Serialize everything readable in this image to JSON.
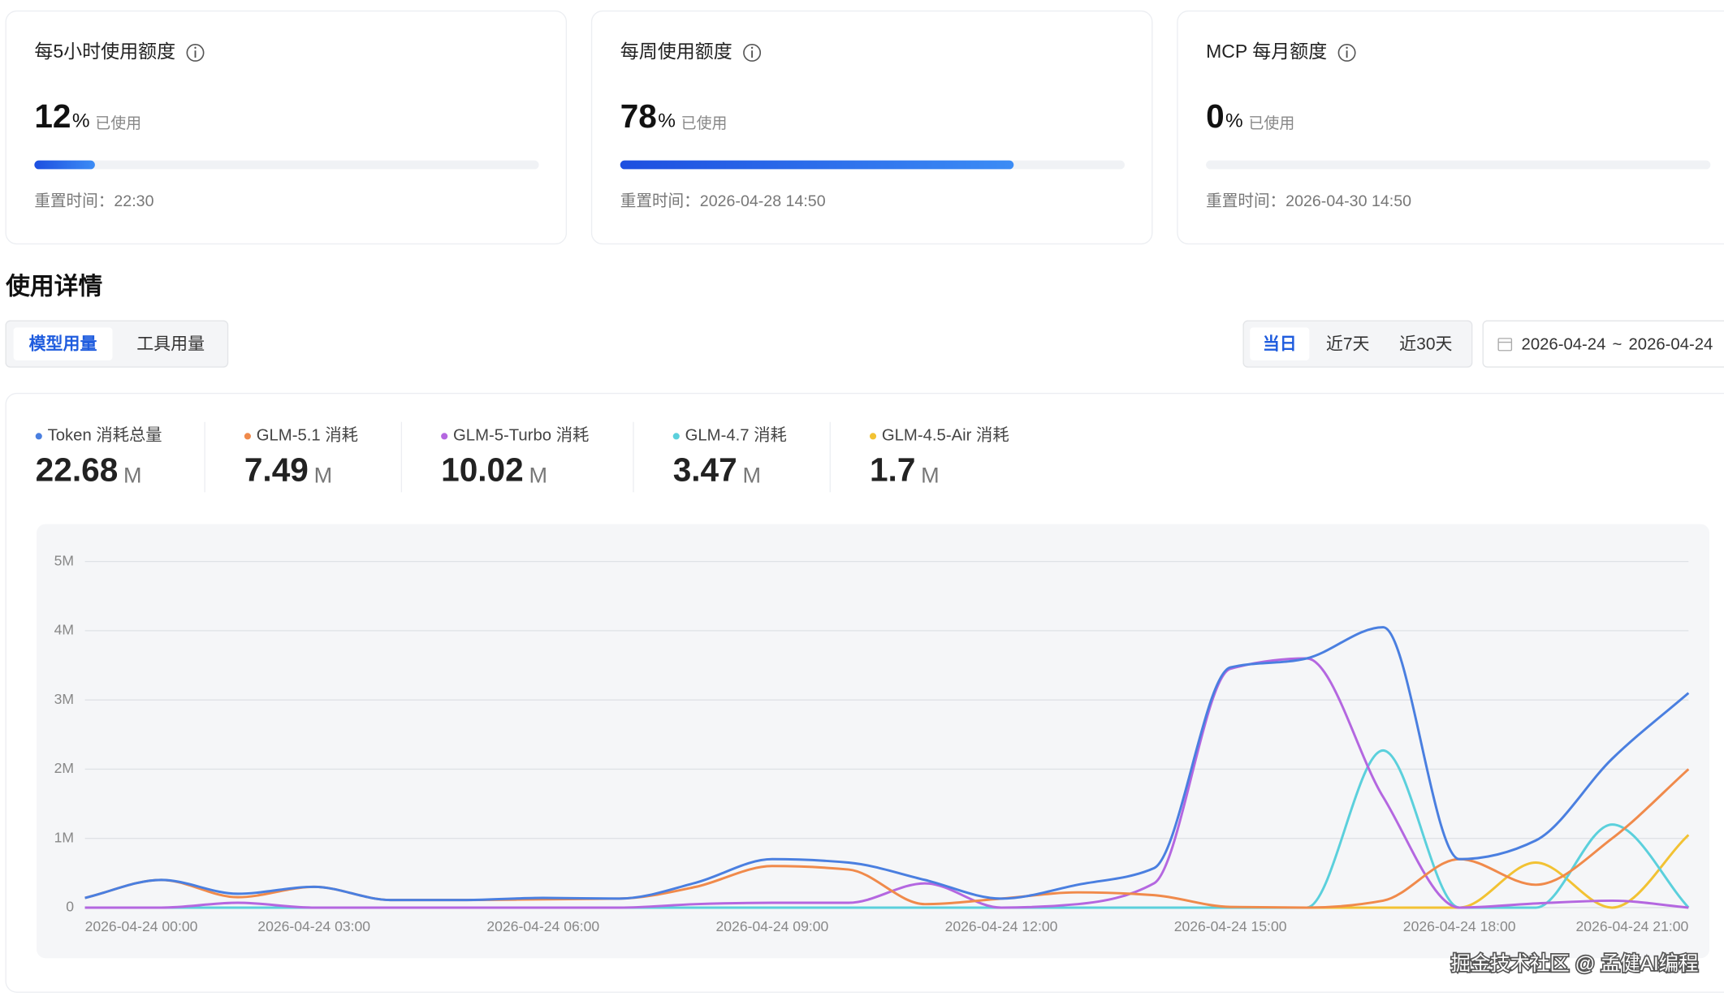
{
  "usage_cards": [
    {
      "title": "每5小时使用额度",
      "percent": 12,
      "unit": "%",
      "used_label": "已使用",
      "reset_label": "重置时间：",
      "reset_time": "22:30"
    },
    {
      "title": "每周使用额度",
      "percent": 78,
      "unit": "%",
      "used_label": "已使用",
      "reset_label": "重置时间：",
      "reset_time": "2026-04-28 14:50"
    },
    {
      "title": "MCP 每月额度",
      "percent": 0,
      "unit": "%",
      "used_label": "已使用",
      "reset_label": "重置时间：",
      "reset_time": "2026-04-30 14:50"
    }
  ],
  "section_title": "使用详情",
  "tabs": [
    {
      "label": "模型用量",
      "active": true
    },
    {
      "label": "工具用量",
      "active": false
    }
  ],
  "range_buttons": [
    {
      "label": "当日",
      "active": true
    },
    {
      "label": "近7天",
      "active": false
    },
    {
      "label": "近30天",
      "active": false
    }
  ],
  "date_range": {
    "start": "2026-04-24",
    "separator": "~",
    "end": "2026-04-24"
  },
  "chart_data": {
    "type": "line",
    "categories": [
      "2026-04-24 00:00",
      null,
      null,
      "2026-04-24 03:00",
      null,
      null,
      "2026-04-24 06:00",
      null,
      null,
      "2026-04-24 09:00",
      null,
      null,
      "2026-04-24 12:00",
      null,
      null,
      "2026-04-24 15:00",
      null,
      null,
      "2026-04-24 18:00",
      null,
      null,
      "2026-04-24 21:00"
    ],
    "ylim": [
      0,
      5
    ],
    "yticks": [
      0,
      {
        "value": 1,
        "label": "1M"
      },
      {
        "value": 2,
        "label": "2M"
      },
      {
        "value": 3,
        "label": "3M"
      },
      {
        "value": 4,
        "label": "4M"
      },
      {
        "value": 5,
        "label": "5M"
      }
    ],
    "grid": true,
    "series": [
      {
        "name": "Token 消耗总量",
        "total": 22.68,
        "unit": "M",
        "color": "#4a7fe0",
        "values": [
          0.14,
          0.4,
          0.2,
          0.3,
          0.11,
          0.11,
          0.14,
          0.13,
          0.36,
          0.7,
          0.65,
          0.4,
          0.13,
          0.33,
          0.57,
          3.47,
          3.6,
          4.05,
          0.7,
          0.97,
          2.15,
          3.1
        ]
      },
      {
        "name": "GLM-5.1 消耗",
        "total": 7.49,
        "unit": "M",
        "color": "#f08a4b",
        "values": [
          0.14,
          0.4,
          0.15,
          0.3,
          0.11,
          0.11,
          0.12,
          0.13,
          0.3,
          0.6,
          0.55,
          0.05,
          0.13,
          0.22,
          0.18,
          0.01,
          0,
          0.1,
          0.7,
          0.33,
          1.0,
          2.0
        ]
      },
      {
        "name": "GLM-5-Turbo 消耗",
        "total": 10.02,
        "unit": "M",
        "color": "#b467e0",
        "values": [
          0,
          0,
          0.07,
          0,
          0,
          0,
          0,
          0,
          0.05,
          0.07,
          0.07,
          0.35,
          0,
          0.05,
          0.35,
          3.45,
          3.6,
          1.6,
          0,
          0.06,
          0.1,
          0
        ]
      },
      {
        "name": "GLM-4.7 消耗",
        "total": 3.47,
        "unit": "M",
        "color": "#5bd0dc",
        "values": [
          0,
          0,
          0,
          0,
          0,
          0,
          0,
          0,
          0,
          0,
          0,
          0,
          0,
          0,
          0,
          0,
          0,
          2.27,
          0,
          0,
          1.2,
          0
        ]
      },
      {
        "name": "GLM-4.5-Air 消耗",
        "total": 1.7,
        "unit": "M",
        "color": "#f2c233",
        "values": [
          0,
          0,
          0,
          0,
          0,
          0,
          0,
          0,
          0,
          0,
          0,
          0,
          0,
          0,
          0,
          0,
          0,
          0,
          0,
          0.65,
          0,
          1.05
        ]
      }
    ]
  },
  "watermark": "掘金技术社区 @ 孟健AI编程"
}
